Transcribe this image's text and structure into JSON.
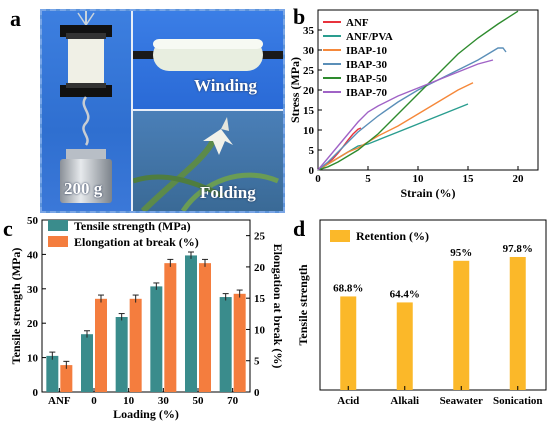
{
  "panel_a": {
    "letter": "a",
    "weight_label": "200 g",
    "winding_label": "Winding",
    "folding_label": "Folding"
  },
  "chart_data": [
    {
      "panel": "b",
      "type": "line",
      "xlabel": "Strain (%)",
      "ylabel": "Stress (MPa)",
      "xlim": [
        0,
        22
      ],
      "ylim": [
        0,
        40
      ],
      "xticks": [
        0,
        5,
        10,
        15,
        20
      ],
      "yticks": [
        0,
        5,
        10,
        15,
        20,
        25,
        30,
        35
      ],
      "grid": false,
      "legend_position": "top-left",
      "series": [
        {
          "name": "ANF",
          "color": "#e8323c",
          "x": [
            0,
            0.5,
            1.0,
            1.5,
            2.0,
            2.5,
            3.0,
            3.5,
            4.0,
            4.3
          ],
          "y": [
            0,
            0.6,
            1.8,
            2.8,
            4.2,
            5.8,
            7.5,
            9.0,
            10.2,
            10.5
          ]
        },
        {
          "name": "ANF/PVA",
          "color": "#2a9d8f",
          "x": [
            0,
            1.0,
            2.0,
            3.0,
            4.0,
            5.0,
            6.0,
            8.0,
            10.0,
            12.0,
            14.0,
            15.0
          ],
          "y": [
            0,
            1.5,
            3.0,
            4.5,
            6.0,
            6.5,
            7.5,
            9.5,
            11.5,
            13.5,
            15.5,
            16.5
          ]
        },
        {
          "name": "IBAP-10",
          "color": "#f5883a",
          "x": [
            0,
            1.0,
            2.0,
            3.0,
            4.0,
            5.0,
            6.0,
            8.0,
            10.0,
            12.0,
            14.0,
            15.5
          ],
          "y": [
            0,
            1.5,
            3.0,
            4.5,
            5.5,
            7.0,
            8.5,
            11.0,
            14.0,
            17.0,
            20.0,
            21.8
          ]
        },
        {
          "name": "IBAP-30",
          "color": "#5b8fb8",
          "x": [
            0,
            1.0,
            2.0,
            3.0,
            4.0,
            5.0,
            6.0,
            8.0,
            10.0,
            12.0,
            14.0,
            16.0,
            17.0,
            18.0,
            18.5,
            18.8
          ],
          "y": [
            0,
            2.0,
            4.5,
            7.0,
            9.5,
            11.5,
            13.5,
            17.0,
            20.0,
            22.5,
            25.0,
            27.5,
            29.0,
            30.5,
            30.5,
            29.5
          ]
        },
        {
          "name": "IBAP-50",
          "color": "#2e8b2e",
          "x": [
            0,
            1.0,
            2.0,
            3.0,
            4.0,
            5.0,
            6.0,
            7.0,
            8.0,
            10.0,
            12.0,
            14.0,
            16.0,
            18.0,
            20.0
          ],
          "y": [
            0,
            0.8,
            2.0,
            3.5,
            5.0,
            7.0,
            9.0,
            11.5,
            14.0,
            19.0,
            24.0,
            29.0,
            33.0,
            36.5,
            39.7
          ]
        },
        {
          "name": "IBAP-70",
          "color": "#a063c6",
          "x": [
            0,
            1.0,
            2.0,
            3.0,
            4.0,
            5.0,
            6.0,
            8.0,
            10.0,
            12.0,
            14.0,
            16.0,
            17.5
          ],
          "y": [
            0,
            3.0,
            6.0,
            9.0,
            12.0,
            14.5,
            16.0,
            18.5,
            20.5,
            22.5,
            24.5,
            26.5,
            27.5
          ]
        }
      ]
    },
    {
      "panel": "c",
      "type": "bar",
      "xlabel": "Loading (%)",
      "ylabel": "Tensile strength (MPa)",
      "ylabel_right": "Elongation at break (%)",
      "categories": [
        "ANF",
        "0",
        "10",
        "30",
        "50",
        "70"
      ],
      "ylim": [
        0,
        50
      ],
      "ylim_right": [
        0,
        27.5
      ],
      "yticks": [
        0,
        10,
        20,
        30,
        40,
        50
      ],
      "yticks_right": [
        0,
        5,
        10,
        15,
        20,
        25
      ],
      "legend_position": "top-left",
      "series": [
        {
          "name": "Tensile strength (MPa)",
          "color": "#3a8c8c",
          "axis": "left",
          "values": [
            10.5,
            16.8,
            21.8,
            30.7,
            39.7,
            27.6
          ],
          "errors": [
            1.1,
            1.0,
            1.0,
            1.0,
            1.0,
            1.0
          ]
        },
        {
          "name": "Elongation at break (%)",
          "color": "#f47d3e",
          "axis": "right",
          "values": [
            4.3,
            14.9,
            14.9,
            20.6,
            20.6,
            15.7
          ],
          "errors": [
            0.6,
            0.6,
            0.6,
            0.6,
            0.6,
            0.6
          ]
        }
      ]
    },
    {
      "panel": "d",
      "type": "bar",
      "xlabel": "",
      "ylabel": "Tensile strength",
      "categories": [
        "Acid",
        "Alkali",
        "Seawater",
        "Sonication"
      ],
      "values": [
        68.8,
        64.4,
        95.0,
        97.8
      ],
      "data_labels": [
        "68.8%",
        "64.4%",
        "95%",
        "97.8%"
      ],
      "ylim": [
        0,
        125
      ],
      "legend_position": "top-left",
      "series": [
        {
          "name": "Retention (%)",
          "color": "#fbb829"
        }
      ]
    }
  ]
}
